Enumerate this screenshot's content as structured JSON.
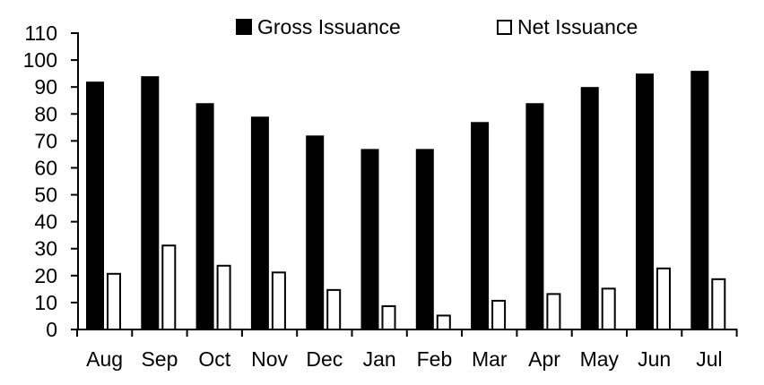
{
  "chart_data": {
    "type": "bar",
    "title": "",
    "xlabel": "",
    "ylabel": "",
    "categories": [
      "Aug",
      "Sep",
      "Oct",
      "Nov",
      "Dec",
      "Jan",
      "Feb",
      "Mar",
      "Apr",
      "May",
      "Jun",
      "Jul"
    ],
    "series": [
      {
        "name": "Gross Issuance",
        "style": "solid",
        "fill_color": "#000000",
        "border_color": "#000000",
        "values": [
          92,
          94,
          84,
          79,
          72,
          67,
          67,
          77,
          84,
          90,
          95,
          96
        ]
      },
      {
        "name": "Net Issuance",
        "style": "outline",
        "fill_color": "#ffffff",
        "border_color": "#000000",
        "values": [
          21,
          31.5,
          24,
          21.5,
          15,
          9,
          5.5,
          11,
          13.5,
          15.5,
          23,
          19
        ]
      }
    ],
    "ylim": [
      0,
      110
    ],
    "ytick_step": 10,
    "yticks": [
      0,
      10,
      20,
      30,
      40,
      50,
      60,
      70,
      80,
      90,
      100,
      110
    ],
    "grid": "off",
    "legend_position": "top",
    "axis_color": "#000000",
    "background_color": "#ffffff"
  }
}
